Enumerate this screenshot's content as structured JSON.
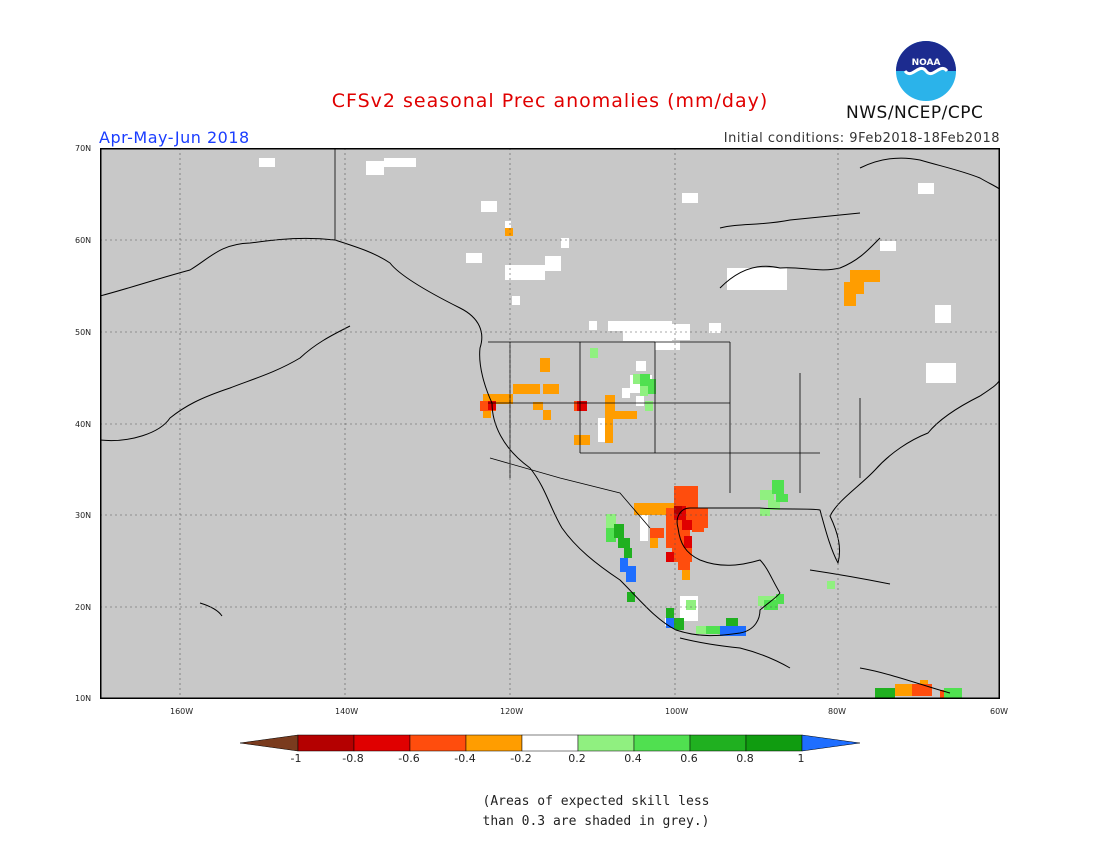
{
  "header": {
    "title": "CFSv2 seasonal Prec anomalies (mm/day)",
    "season": "Apr-May-Jun 2018",
    "initial_conditions": "Initial conditions: 9Feb2018-18Feb2018",
    "agency": "NWS/NCEP/CPC",
    "logo_text": "NOAA"
  },
  "map": {
    "background_color": "#c8c8c8",
    "lat_labels": [
      "70N",
      "60N",
      "50N",
      "40N",
      "30N",
      "20N",
      "10N"
    ],
    "lon_labels": [
      "160W",
      "140W",
      "120W",
      "100W",
      "80W",
      "60W"
    ]
  },
  "colorbar": {
    "colors": [
      "#7a3b1e",
      "#b40000",
      "#e00000",
      "#ff4d0d",
      "#ff9d00",
      "#ffffff",
      "#90f080",
      "#50e050",
      "#20b020",
      "#109c10",
      "#1e6eff"
    ],
    "ticks": [
      "-1",
      "-0.8",
      "-0.6",
      "-0.4",
      "-0.2",
      "0.2",
      "0.4",
      "0.6",
      "0.8",
      "1"
    ]
  },
  "note": {
    "line1": "(Areas of expected skill less",
    "line2": "than 0.3 are shaded in grey.)"
  }
}
